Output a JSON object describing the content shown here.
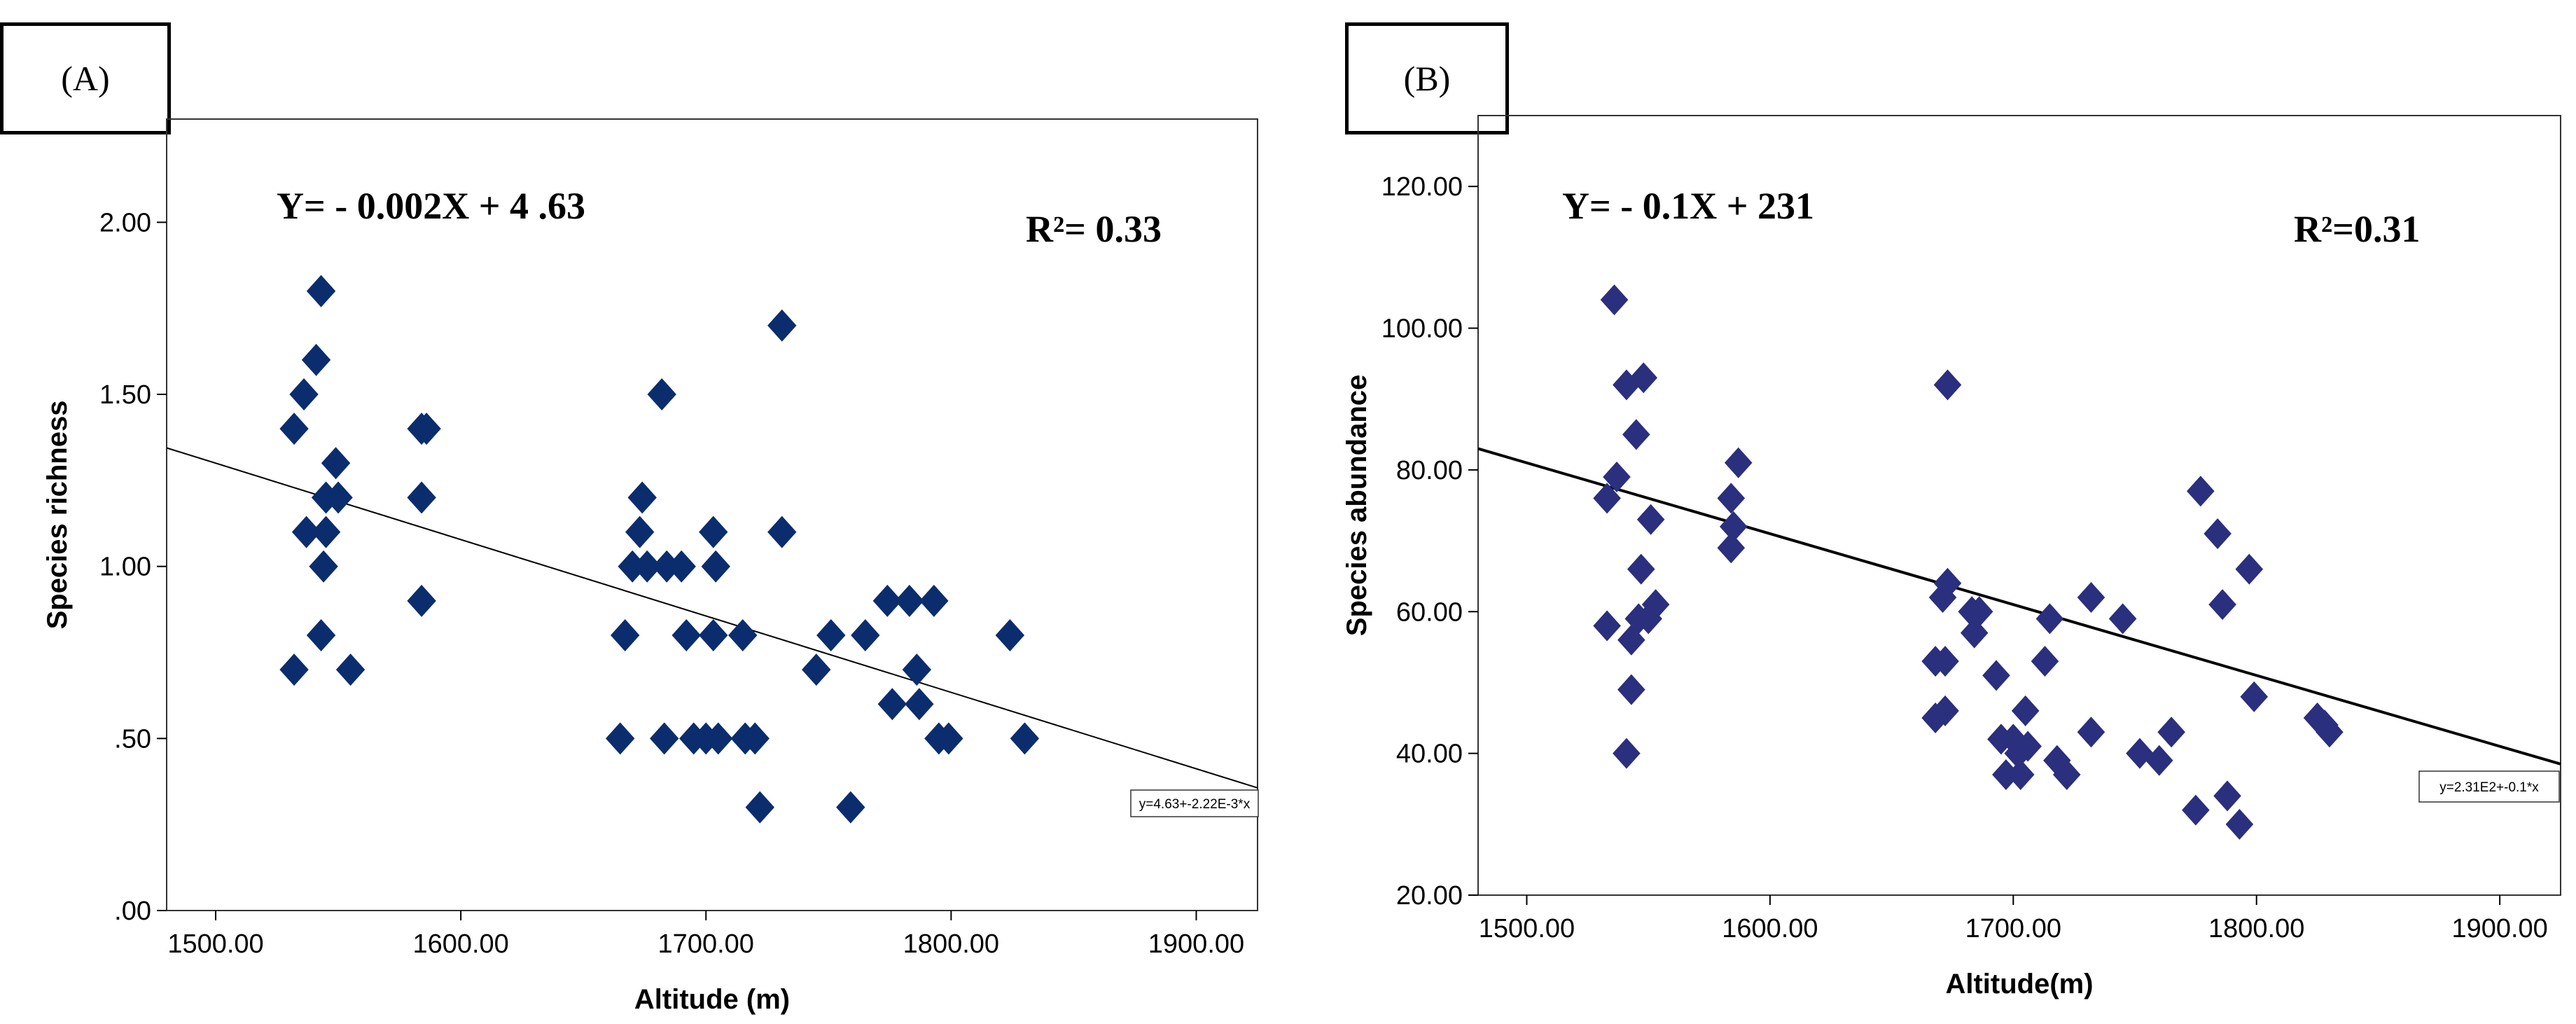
{
  "chart_data": [
    {
      "type": "scatter",
      "panel_label": "(A)",
      "xlabel": "Altitude (m)",
      "ylabel": "Species richness",
      "xlim": [
        1480,
        1925
      ],
      "ylim": [
        0,
        2.3
      ],
      "xticks": [
        1500,
        1600,
        1700,
        1800,
        1900
      ],
      "xtick_labels": [
        "1500.00",
        "1600.00",
        "1700.00",
        "1800.00",
        "1900.00"
      ],
      "yticks": [
        0,
        0.5,
        1.0,
        1.5,
        2.0
      ],
      "ytick_labels": [
        ".00",
        ".50",
        "1.00",
        "1.50",
        "2.00"
      ],
      "equation_text": "Y= - 0.002X + 4 .63",
      "r2_text": "R²= 0.33",
      "fit_label": "y=4.63+-2.22E-3*x",
      "fit": {
        "intercept": 4.63,
        "slope": -0.00222
      },
      "marker_color": "#0b2d6e",
      "points": [
        [
          1543,
          1.8
        ],
        [
          1541,
          1.6
        ],
        [
          1536,
          1.5
        ],
        [
          1532,
          1.4
        ],
        [
          1545,
          1.2
        ],
        [
          1549,
          1.3
        ],
        [
          1550,
          1.2
        ],
        [
          1537,
          1.1
        ],
        [
          1545,
          1.1
        ],
        [
          1544,
          1.0
        ],
        [
          1543,
          0.8
        ],
        [
          1532,
          0.7
        ],
        [
          1555,
          0.7
        ],
        [
          1584,
          1.4
        ],
        [
          1586,
          1.4
        ],
        [
          1584,
          1.2
        ],
        [
          1584,
          0.9
        ],
        [
          1674,
          1.2
        ],
        [
          1682,
          1.5
        ],
        [
          1731,
          1.7
        ],
        [
          1673,
          1.1
        ],
        [
          1670,
          1.0
        ],
        [
          1676,
          1.0
        ],
        [
          1684,
          1.0
        ],
        [
          1690,
          1.0
        ],
        [
          1703,
          1.1
        ],
        [
          1704,
          1.0
        ],
        [
          1731,
          1.1
        ],
        [
          1667,
          0.8
        ],
        [
          1692,
          0.8
        ],
        [
          1703,
          0.8
        ],
        [
          1715,
          0.8
        ],
        [
          1665,
          0.5
        ],
        [
          1683,
          0.5
        ],
        [
          1695,
          0.5
        ],
        [
          1700,
          0.5
        ],
        [
          1705,
          0.5
        ],
        [
          1716,
          0.5
        ],
        [
          1720,
          0.5
        ],
        [
          1722,
          0.3
        ],
        [
          1745,
          0.7
        ],
        [
          1751,
          0.8
        ],
        [
          1765,
          0.8
        ],
        [
          1774,
          0.9
        ],
        [
          1776,
          0.6
        ],
        [
          1783,
          0.9
        ],
        [
          1786,
          0.7
        ],
        [
          1787,
          0.6
        ],
        [
          1793,
          0.9
        ],
        [
          1795,
          0.5
        ],
        [
          1799,
          0.5
        ],
        [
          1759,
          0.3
        ],
        [
          1824,
          0.8
        ],
        [
          1830,
          0.5
        ]
      ]
    },
    {
      "type": "scatter",
      "panel_label": "(B)",
      "xlabel": "Altitude(m)",
      "ylabel": "Species abundance",
      "xlim": [
        1480,
        1925
      ],
      "ylim": [
        20,
        130
      ],
      "xticks": [
        1500,
        1600,
        1700,
        1800,
        1900
      ],
      "xtick_labels": [
        "1500.00",
        "1600.00",
        "1700.00",
        "1800.00",
        "1900.00"
      ],
      "yticks": [
        20,
        40,
        60,
        80,
        100,
        120
      ],
      "ytick_labels": [
        "20.00",
        "40.00",
        "60.00",
        "80.00",
        "100.00",
        "120.00"
      ],
      "equation_text": "Y= - 0.1X + 231",
      "r2_text": "R²=0.31",
      "fit_label": "y=2.31E2+-0.1*x",
      "fit": {
        "intercept": 231,
        "slope": -0.1
      },
      "marker_color": "#2a2f7e",
      "points": [
        [
          1536,
          104
        ],
        [
          1548,
          93
        ],
        [
          1541,
          92
        ],
        [
          1545,
          85
        ],
        [
          1537,
          79
        ],
        [
          1533,
          76
        ],
        [
          1551,
          73
        ],
        [
          1547,
          66
        ],
        [
          1553,
          61
        ],
        [
          1533,
          58
        ],
        [
          1546,
          59
        ],
        [
          1550,
          59
        ],
        [
          1543,
          56
        ],
        [
          1543,
          49
        ],
        [
          1541,
          40
        ],
        [
          1587,
          81
        ],
        [
          1584,
          76
        ],
        [
          1585,
          72
        ],
        [
          1584,
          69
        ],
        [
          1673,
          92
        ],
        [
          1673,
          64
        ],
        [
          1671,
          62
        ],
        [
          1683,
          60
        ],
        [
          1686,
          60
        ],
        [
          1684,
          57
        ],
        [
          1668,
          53
        ],
        [
          1672,
          53
        ],
        [
          1693,
          51
        ],
        [
          1672,
          46
        ],
        [
          1668,
          45
        ],
        [
          1705,
          46
        ],
        [
          1695,
          42
        ],
        [
          1700,
          42
        ],
        [
          1702,
          40
        ],
        [
          1706,
          41
        ],
        [
          1697,
          37
        ],
        [
          1703,
          37
        ],
        [
          1715,
          59
        ],
        [
          1713,
          53
        ],
        [
          1732,
          62
        ],
        [
          1745,
          59
        ],
        [
          1732,
          43
        ],
        [
          1718,
          39
        ],
        [
          1722,
          37
        ],
        [
          1752,
          40
        ],
        [
          1760,
          39
        ],
        [
          1765,
          43
        ],
        [
          1775,
          32
        ],
        [
          1777,
          77
        ],
        [
          1784,
          71
        ],
        [
          1786,
          61
        ],
        [
          1797,
          66
        ],
        [
          1799,
          48
        ],
        [
          1788,
          34
        ],
        [
          1793,
          30
        ],
        [
          1825,
          45
        ],
        [
          1828,
          44
        ],
        [
          1830,
          43
        ]
      ]
    }
  ]
}
